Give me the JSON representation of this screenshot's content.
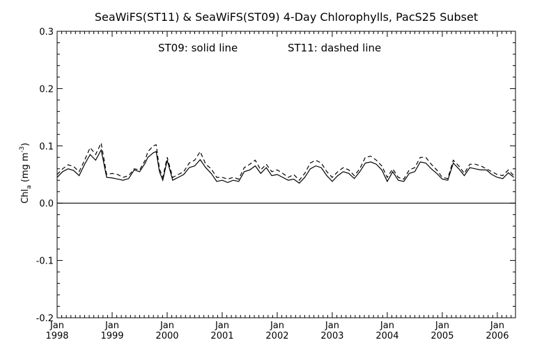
{
  "chart_data": {
    "type": "line",
    "title": "SeaWiFS(ST11) & SeaWiFS(ST09) 4-Day Chlorophylls, PacS25 Subset",
    "annotation_left": "ST09: solid line",
    "annotation_right": "ST11: dashed line",
    "ylabel_main": "Chl",
    "ylabel_sub": "a",
    "ylabel_rest": " (mg m",
    "ylabel_sup": "-3",
    "ylabel_close": ")",
    "ylim": [
      -0.2,
      0.3
    ],
    "xlim": [
      1998.0,
      2006.33
    ],
    "yticks": [
      {
        "value": -0.2,
        "label": "-0.2"
      },
      {
        "value": -0.1,
        "label": "-0.1"
      },
      {
        "value": 0.0,
        "label": "0.0"
      },
      {
        "value": 0.1,
        "label": "0.1"
      },
      {
        "value": 0.2,
        "label": "0.2"
      },
      {
        "value": 0.3,
        "label": "0.3"
      }
    ],
    "xticks": [
      {
        "value": 1998,
        "month": "Jan",
        "year": "1998"
      },
      {
        "value": 1999,
        "month": "Jan",
        "year": "1999"
      },
      {
        "value": 2000,
        "month": "Jan",
        "year": "2000"
      },
      {
        "value": 2001,
        "month": "Jan",
        "year": "2001"
      },
      {
        "value": 2002,
        "month": "Jan",
        "year": "2002"
      },
      {
        "value": 2003,
        "month": "Jan",
        "year": "2003"
      },
      {
        "value": 2004,
        "month": "Jan",
        "year": "2004"
      },
      {
        "value": 2005,
        "month": "Jan",
        "year": "2005"
      },
      {
        "value": 2006,
        "month": "Jan",
        "year": "2006"
      }
    ],
    "zero_line": 0.0,
    "grid": false,
    "series": [
      {
        "name": "ST09",
        "style": "solid",
        "color": "#000000",
        "x": [
          1998.0,
          1998.1,
          1998.2,
          1998.3,
          1998.4,
          1998.5,
          1998.6,
          1998.7,
          1998.8,
          1998.9,
          1999.0,
          1999.1,
          1999.2,
          1999.3,
          1999.4,
          1999.5,
          1999.6,
          1999.65,
          1999.75,
          1999.8,
          1999.86,
          1999.92,
          2000.0,
          2000.1,
          2000.2,
          2000.3,
          2000.4,
          2000.5,
          2000.6,
          2000.7,
          2000.8,
          2000.9,
          2001.0,
          2001.1,
          2001.2,
          2001.3,
          2001.4,
          2001.5,
          2001.6,
          2001.7,
          2001.8,
          2001.9,
          2002.0,
          2002.1,
          2002.2,
          2002.3,
          2002.4,
          2002.5,
          2002.6,
          2002.7,
          2002.8,
          2002.9,
          2003.0,
          2003.1,
          2003.2,
          2003.3,
          2003.4,
          2003.5,
          2003.6,
          2003.7,
          2003.8,
          2003.9,
          2004.0,
          2004.1,
          2004.2,
          2004.3,
          2004.4,
          2004.5,
          2004.6,
          2004.7,
          2004.8,
          2004.9,
          2005.0,
          2005.1,
          2005.2,
          2005.3,
          2005.4,
          2005.5,
          2005.6,
          2005.7,
          2005.8,
          2005.9,
          2006.0,
          2006.1,
          2006.2,
          2006.3
        ],
        "y": [
          0.045,
          0.055,
          0.06,
          0.057,
          0.048,
          0.068,
          0.085,
          0.075,
          0.093,
          0.045,
          0.044,
          0.042,
          0.04,
          0.043,
          0.058,
          0.055,
          0.07,
          0.08,
          0.088,
          0.09,
          0.055,
          0.04,
          0.075,
          0.04,
          0.045,
          0.05,
          0.062,
          0.065,
          0.076,
          0.062,
          0.052,
          0.038,
          0.04,
          0.036,
          0.04,
          0.038,
          0.055,
          0.058,
          0.065,
          0.052,
          0.062,
          0.048,
          0.05,
          0.045,
          0.04,
          0.042,
          0.035,
          0.045,
          0.06,
          0.065,
          0.062,
          0.048,
          0.038,
          0.048,
          0.055,
          0.052,
          0.043,
          0.055,
          0.07,
          0.072,
          0.068,
          0.058,
          0.038,
          0.055,
          0.04,
          0.038,
          0.052,
          0.055,
          0.072,
          0.07,
          0.06,
          0.052,
          0.042,
          0.04,
          0.07,
          0.06,
          0.048,
          0.062,
          0.06,
          0.058,
          0.058,
          0.05,
          0.045,
          0.043,
          0.053,
          0.045
        ]
      },
      {
        "name": "ST11",
        "style": "dashed",
        "color": "#000000",
        "x": [
          1998.0,
          1998.1,
          1998.2,
          1998.3,
          1998.4,
          1998.5,
          1998.6,
          1998.7,
          1998.8,
          1998.9,
          1999.0,
          1999.1,
          1999.2,
          1999.3,
          1999.4,
          1999.5,
          1999.6,
          1999.65,
          1999.75,
          1999.8,
          1999.86,
          1999.92,
          2000.0,
          2000.1,
          2000.2,
          2000.3,
          2000.4,
          2000.5,
          2000.6,
          2000.7,
          2000.8,
          2000.9,
          2001.0,
          2001.1,
          2001.2,
          2001.3,
          2001.4,
          2001.5,
          2001.6,
          2001.7,
          2001.8,
          2001.9,
          2002.0,
          2002.1,
          2002.2,
          2002.3,
          2002.4,
          2002.5,
          2002.6,
          2002.7,
          2002.8,
          2002.9,
          2003.0,
          2003.1,
          2003.2,
          2003.3,
          2003.4,
          2003.5,
          2003.6,
          2003.7,
          2003.8,
          2003.9,
          2004.0,
          2004.1,
          2004.2,
          2004.3,
          2004.4,
          2004.5,
          2004.6,
          2004.7,
          2004.8,
          2004.9,
          2005.0,
          2005.1,
          2005.2,
          2005.3,
          2005.4,
          2005.5,
          2005.6,
          2005.7,
          2005.8,
          2005.9,
          2006.0,
          2006.1,
          2006.2,
          2006.3
        ],
        "y": [
          0.05,
          0.06,
          0.067,
          0.064,
          0.055,
          0.075,
          0.097,
          0.085,
          0.105,
          0.05,
          0.052,
          0.05,
          0.045,
          0.048,
          0.06,
          0.058,
          0.075,
          0.09,
          0.1,
          0.102,
          0.06,
          0.045,
          0.08,
          0.045,
          0.05,
          0.055,
          0.07,
          0.075,
          0.09,
          0.068,
          0.06,
          0.045,
          0.045,
          0.042,
          0.045,
          0.042,
          0.062,
          0.068,
          0.075,
          0.058,
          0.068,
          0.055,
          0.058,
          0.052,
          0.045,
          0.05,
          0.04,
          0.052,
          0.07,
          0.075,
          0.07,
          0.055,
          0.045,
          0.055,
          0.062,
          0.058,
          0.048,
          0.06,
          0.08,
          0.082,
          0.075,
          0.065,
          0.045,
          0.06,
          0.045,
          0.042,
          0.058,
          0.062,
          0.08,
          0.08,
          0.068,
          0.058,
          0.045,
          0.043,
          0.075,
          0.065,
          0.052,
          0.068,
          0.068,
          0.065,
          0.06,
          0.055,
          0.05,
          0.048,
          0.058,
          0.048
        ]
      }
    ]
  }
}
